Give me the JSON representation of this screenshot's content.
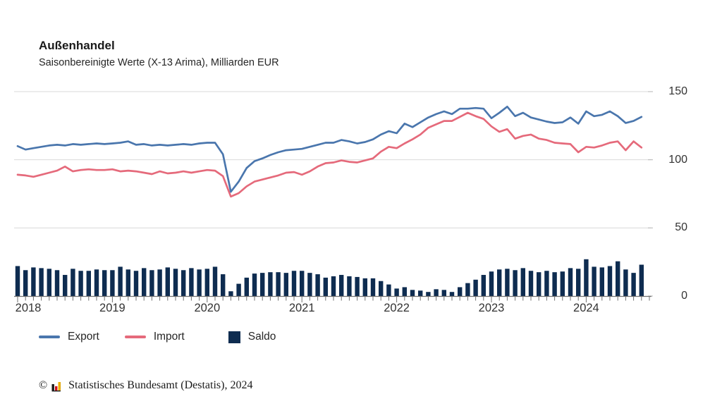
{
  "title": "Außenhandel",
  "subtitle": "Saisonbereinigte Werte (X-13 Arima), Milliarden EUR",
  "axes": {
    "y": {
      "labels": [
        "150",
        "100",
        "50",
        "0"
      ],
      "values": [
        150,
        100,
        50,
        0
      ]
    },
    "x": {
      "labels": [
        "2018",
        "2019",
        "2020",
        "2021",
        "2022",
        "2023",
        "2024"
      ]
    }
  },
  "legend": {
    "items": [
      {
        "label": "Export",
        "type": "line",
        "color": "#4a76ad"
      },
      {
        "label": "Import",
        "type": "line",
        "color": "#e56a7b"
      },
      {
        "label": "Saldo",
        "type": "square",
        "color": "#0e2c50"
      }
    ]
  },
  "footer": {
    "copyright": "©",
    "source": "Statistisches Bundesamt (Destatis), 2024"
  },
  "colors": {
    "export_line": "#4a76ad",
    "import_line": "#e56a7b",
    "saldo_bar": "#0e2c50",
    "gridline": "#d9d9d9",
    "axis": "#707070",
    "right_tick": "#b5b5b5"
  },
  "chart_data": {
    "type": "line+bar",
    "title": "Außenhandel",
    "subtitle": "Saisonbereinigte Werte (X-13 Arima), Milliarden EUR",
    "unit": "Milliarden EUR",
    "x_unit": "month",
    "x_start": "2018-01",
    "x_end": "2024-08",
    "n_months": 80,
    "ylim": [
      0,
      150
    ],
    "y_gridlines": [
      50,
      100,
      150
    ],
    "x_tick_years": [
      2018,
      2019,
      2020,
      2021,
      2022,
      2023,
      2024
    ],
    "legend_position": "bottom",
    "series": [
      {
        "name": "Export",
        "type": "line",
        "color": "#4a76ad",
        "values": [
          110,
          107.5,
          108.5,
          109.5,
          110.5,
          111,
          110.5,
          111.5,
          111,
          111.5,
          112,
          111.5,
          112,
          112.5,
          113.5,
          111,
          111.5,
          110.5,
          111,
          110.5,
          111,
          111.5,
          111,
          112,
          112.5,
          112.5,
          104,
          76.5,
          84,
          94,
          99,
          101,
          103.5,
          105.5,
          107,
          107.5,
          108,
          109.5,
          111,
          112.5,
          112.5,
          114.5,
          113.5,
          112,
          113,
          115,
          118.5,
          121,
          119.5,
          126.5,
          124,
          127.5,
          131,
          133.5,
          135.5,
          133.5,
          137.5,
          137.5,
          138,
          137.5,
          130.5,
          134.5,
          139,
          132,
          134.5,
          131,
          129.5,
          128,
          127,
          127.5,
          131,
          126.5,
          135.5,
          132,
          133,
          135.5,
          132,
          127,
          128.5,
          131.5
        ]
      },
      {
        "name": "Import",
        "type": "line",
        "color": "#e56a7b",
        "values": [
          89,
          88.5,
          87.5,
          89,
          90.5,
          92,
          95,
          91.5,
          92.5,
          93,
          92.5,
          92.5,
          93,
          91.5,
          92,
          91.5,
          90.5,
          89.5,
          91.5,
          90,
          90.5,
          91.5,
          90.5,
          91.5,
          92.5,
          92,
          88,
          73,
          75.5,
          80.5,
          84,
          85.5,
          87,
          88.5,
          90.5,
          91,
          89,
          91.5,
          95,
          97.5,
          98,
          99.5,
          98.5,
          98,
          99.5,
          101,
          106,
          109.5,
          108.5,
          112,
          115,
          118.5,
          123.5,
          126,
          128.5,
          128.5,
          131.5,
          134.5,
          132,
          130,
          124.5,
          120.5,
          122.5,
          115.5,
          117.5,
          118.5,
          115.5,
          114.5,
          112.5,
          112,
          111.5,
          105.5,
          109.5,
          109,
          110.5,
          112.5,
          113.5,
          107,
          113.5,
          109
        ]
      },
      {
        "name": "Saldo",
        "type": "bar",
        "color": "#0e2c50",
        "values": [
          22,
          19,
          21,
          20.5,
          20,
          19,
          15.5,
          20,
          18.5,
          18.5,
          19.5,
          19,
          19,
          21.5,
          19.5,
          18.5,
          20.5,
          19,
          19.5,
          21,
          20,
          19,
          20.5,
          19.5,
          20,
          21.5,
          16,
          3.5,
          9,
          13.5,
          16.5,
          17,
          17.5,
          17.5,
          17,
          18.5,
          18.5,
          17,
          16,
          13.5,
          14.5,
          15.5,
          14.5,
          14,
          13,
          13,
          11,
          8.5,
          5.5,
          6.5,
          4.5,
          4,
          3,
          5,
          4.5,
          3,
          6.5,
          9.5,
          12,
          15.5,
          18,
          19.5,
          20,
          19,
          20.5,
          18.5,
          17.5,
          18.5,
          17.5,
          18,
          20.5,
          20,
          27,
          21.5,
          21,
          22,
          25.5,
          19.5,
          17,
          23
        ]
      }
    ]
  }
}
